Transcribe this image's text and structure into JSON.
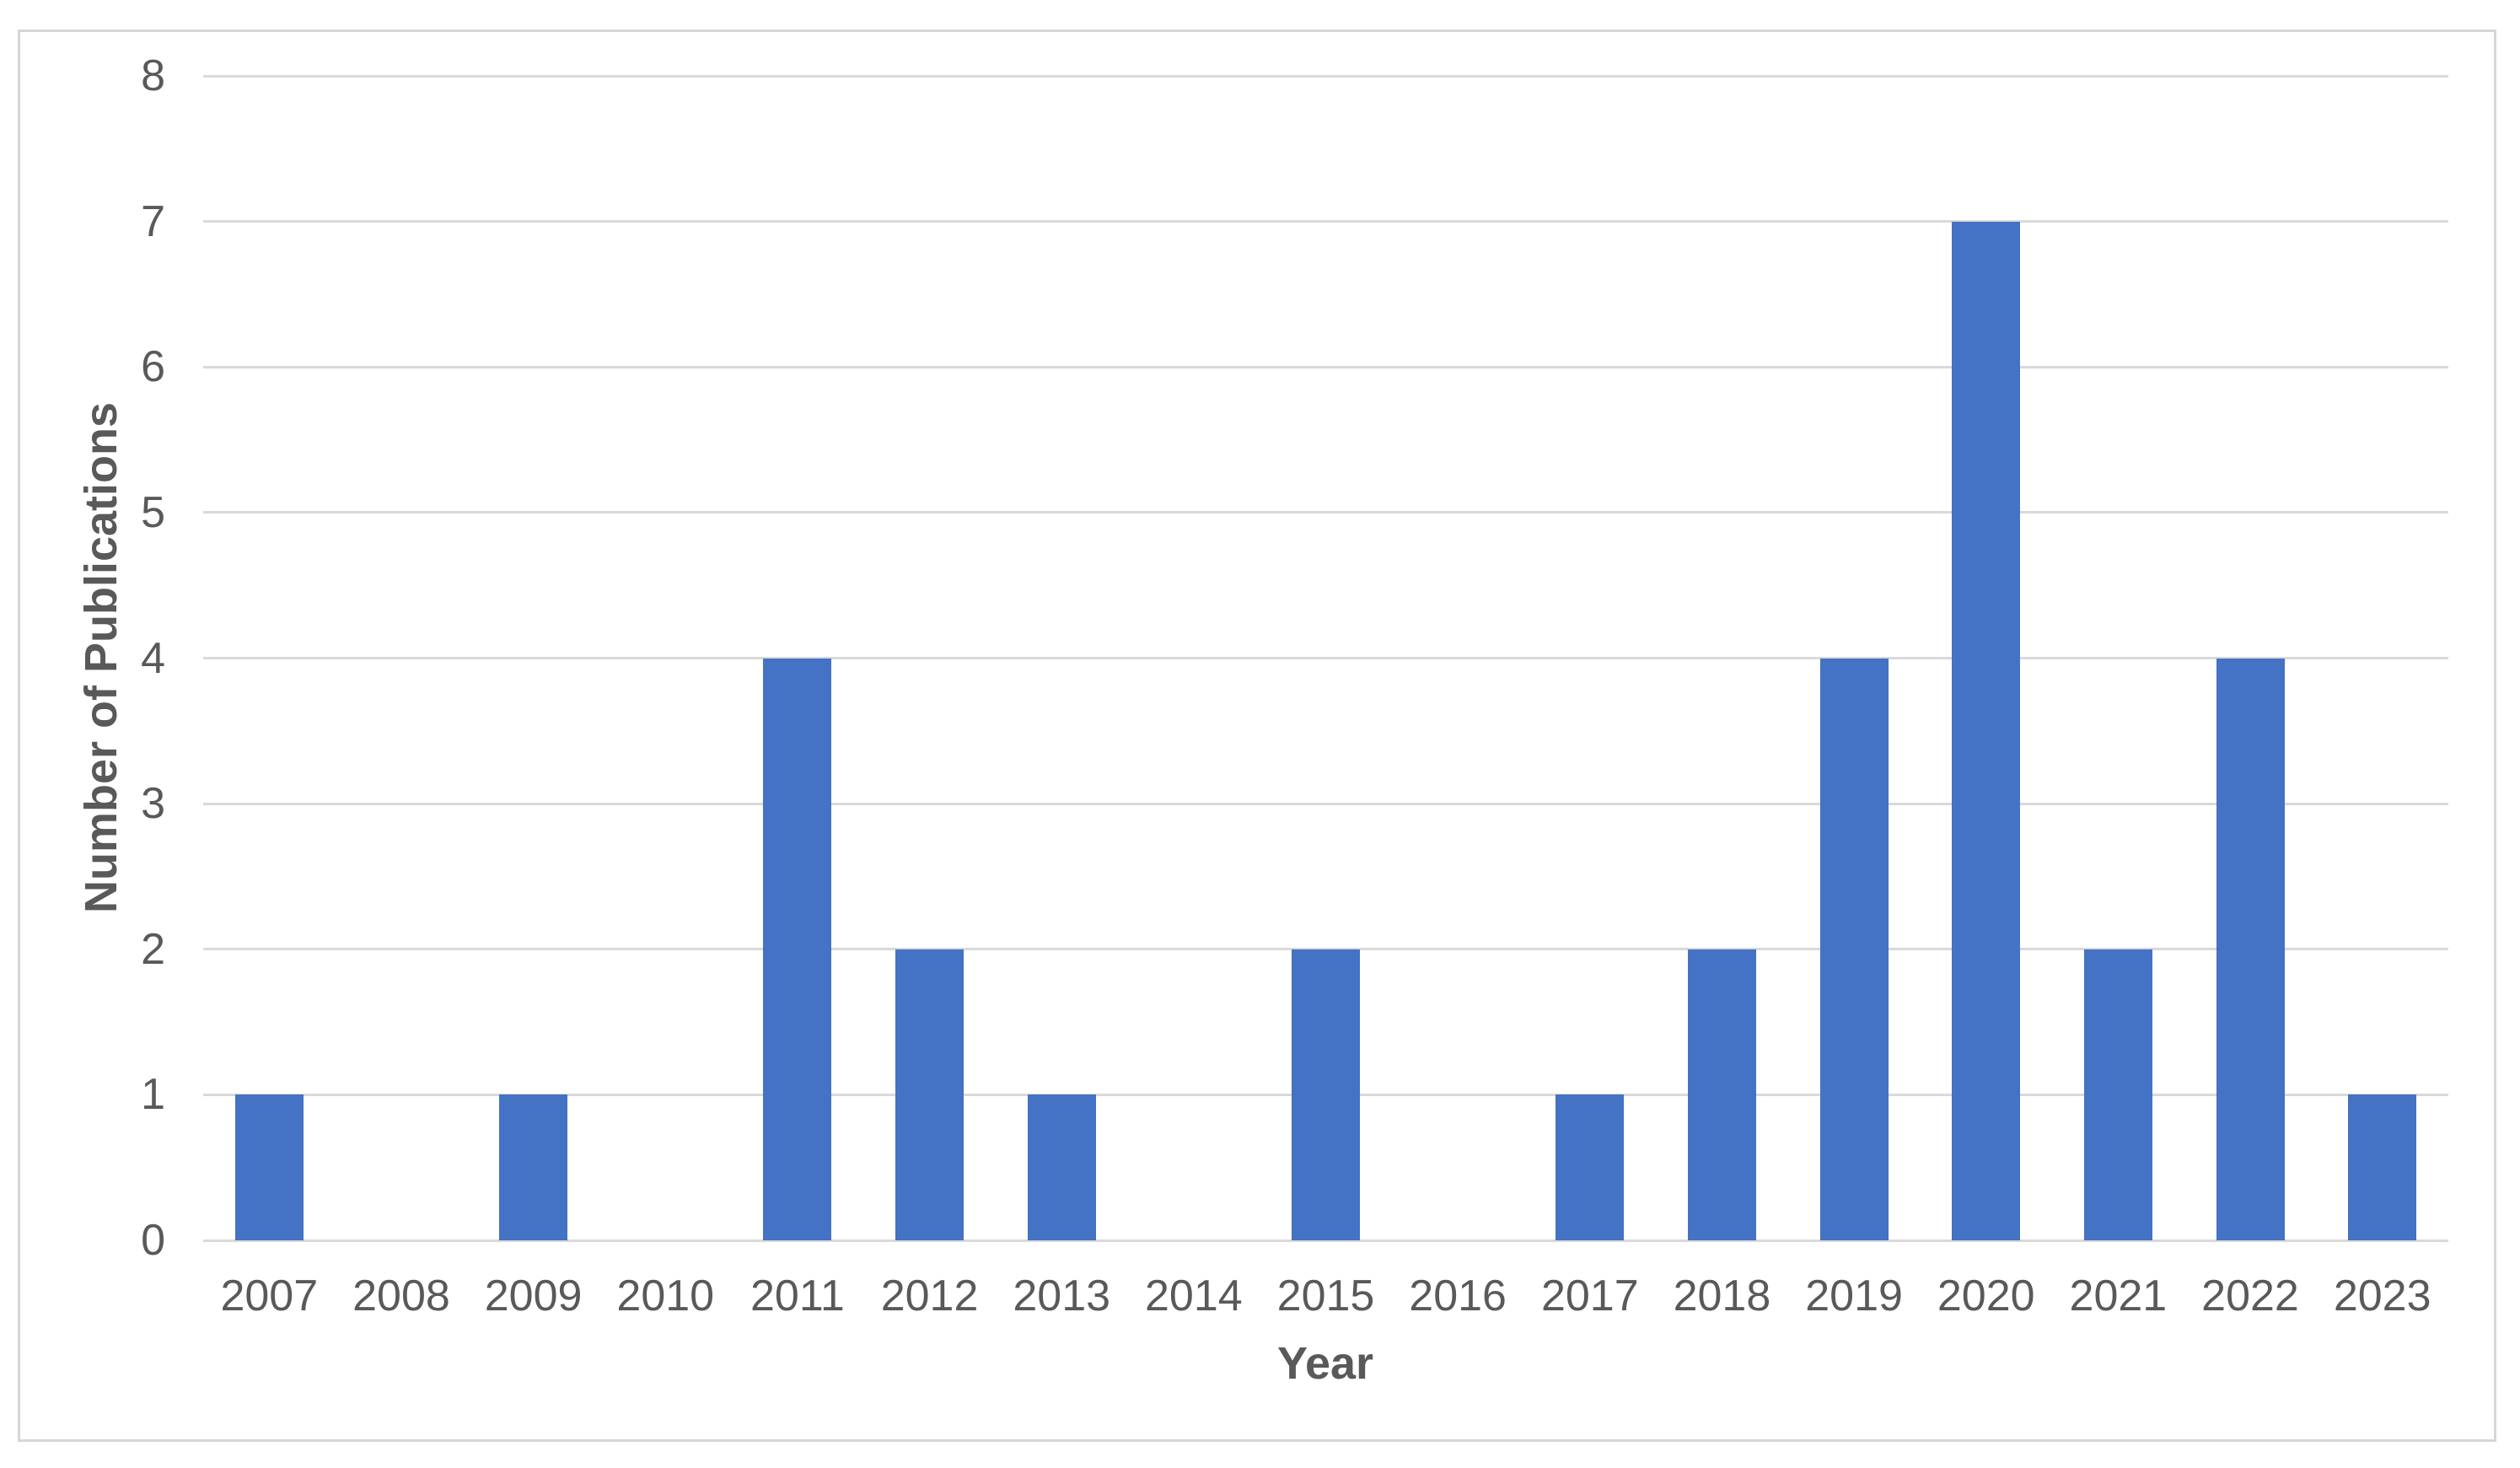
{
  "chart_data": {
    "type": "bar",
    "title": "",
    "categories": [
      "2007",
      "2008",
      "2009",
      "2010",
      "2011",
      "2012",
      "2013",
      "2014",
      "2015",
      "2016",
      "2017",
      "2018",
      "2019",
      "2020",
      "2021",
      "2022",
      "2023"
    ],
    "values": [
      1,
      0,
      1,
      0,
      4,
      2,
      1,
      0,
      2,
      0,
      1,
      2,
      4,
      7,
      2,
      4,
      1
    ],
    "xlabel": "Year",
    "ylabel": "Number of Publications",
    "ylim": [
      0,
      8
    ],
    "yticks": [
      0,
      1,
      2,
      3,
      4,
      5,
      6,
      7,
      8
    ],
    "grid": "horizontal",
    "legend_position": "none"
  },
  "style": {
    "bar_color": "#4472C4",
    "gridline_color": "#D9D9D9",
    "frame_border_color": "#D6D6D6",
    "tick_label_color": "#595959",
    "axis_title_color": "#595959",
    "background": "#FFFFFF"
  }
}
